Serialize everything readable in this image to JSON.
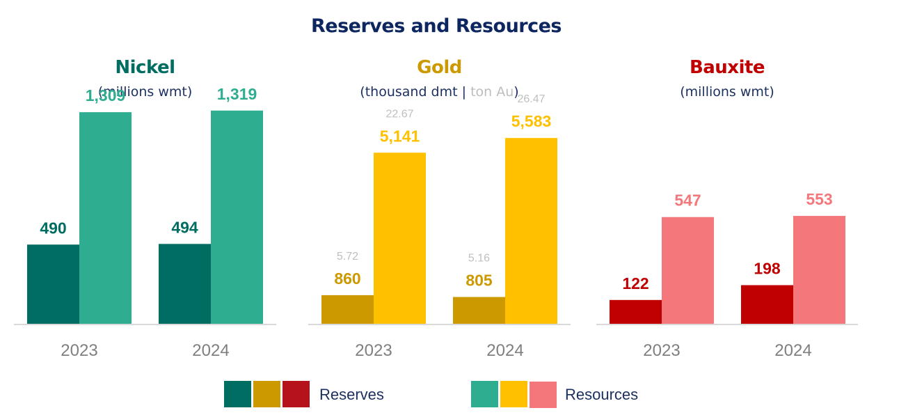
{
  "chart_data": [
    {
      "type": "bar",
      "title": "Nickel",
      "subtitle": "(millions wmt)",
      "categories": [
        "2023",
        "2024"
      ],
      "series": [
        {
          "name": "Reserves",
          "values": [
            490,
            494
          ],
          "labels": [
            "490",
            "494"
          ],
          "color": "#006d62"
        },
        {
          "name": "Resources",
          "values": [
            1309,
            1319
          ],
          "labels": [
            "1,309",
            "1,319"
          ],
          "color": "#2fad91"
        }
      ],
      "ylim": [
        0,
        1400
      ],
      "grid": false,
      "title_color": "#006d62"
    },
    {
      "type": "bar",
      "title": "Gold",
      "subtitle": "(thousand dmt",
      "subtitle_sep": " | ",
      "subtitle_secondary": "ton Au",
      "subtitle_end": ")",
      "categories": [
        "2023",
        "2024"
      ],
      "series": [
        {
          "name": "Reserves",
          "values": [
            860,
            805
          ],
          "labels": [
            "860",
            "805"
          ],
          "secondary_labels": [
            "5.72",
            "5.16"
          ],
          "color": "#cc9900"
        },
        {
          "name": "Resources",
          "values": [
            5141,
            5583
          ],
          "labels": [
            "5,141",
            "5,583"
          ],
          "secondary_labels": [
            "22.67",
            "26.47"
          ],
          "color": "#ffc000"
        }
      ],
      "ylim": [
        0,
        6800
      ],
      "grid": false,
      "title_color": "#cc9900"
    },
    {
      "type": "bar",
      "title": "Bauxite",
      "subtitle": "(millions wmt)",
      "categories": [
        "2023",
        "2024"
      ],
      "series": [
        {
          "name": "Reserves",
          "values": [
            122,
            198
          ],
          "labels": [
            "122",
            "198"
          ],
          "color": "#c00000"
        },
        {
          "name": "Resources",
          "values": [
            547,
            553
          ],
          "labels": [
            "547",
            "553"
          ],
          "color": "#f4777b"
        }
      ],
      "ylim": [
        0,
        1160
      ],
      "grid": false,
      "title_color": "#c00000"
    }
  ],
  "main_title": "Reserves and Resources",
  "legend": {
    "placement": "bottom-center",
    "items": [
      {
        "label": "Reserves",
        "colors": [
          "#006d62",
          "#cc9900",
          "#b5121b"
        ]
      },
      {
        "label": "Resources",
        "colors": [
          "#2fad91",
          "#ffc000",
          "#f4777b"
        ]
      }
    ]
  }
}
